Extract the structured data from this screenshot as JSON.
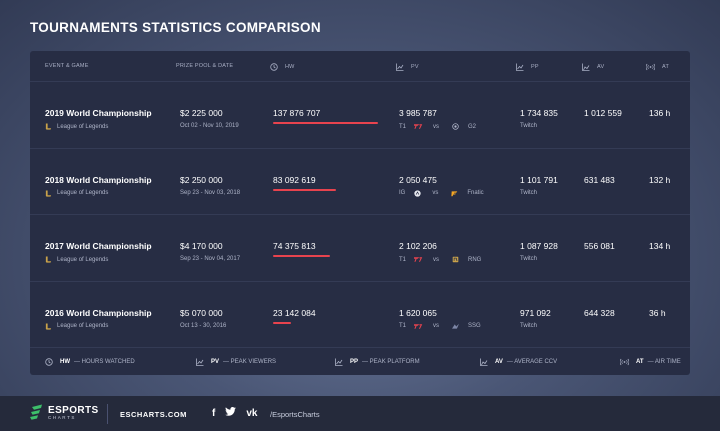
{
  "title": "TOURNAMENTS STATISTICS COMPARISON",
  "columns": {
    "event": "EVENT & GAME",
    "prize": "PRIZE POOL & DATE",
    "hw": "HW",
    "pv": "PV",
    "pp": "PP",
    "av": "AV",
    "at": "AT"
  },
  "rows": [
    {
      "name": "2019 World Championship",
      "game": "League of Legends",
      "prize": "$2 225 000",
      "dates": "Oct 02 - Nov 10, 2019",
      "hw": "137 876 707",
      "hw_fraction": 1.0,
      "pv": "3 985 787",
      "team1": "T1",
      "vs": "vs",
      "team2": "G2",
      "pp": "1 734 835",
      "platform": "Twitch",
      "av": "1 012 559",
      "at": "136 h"
    },
    {
      "name": "2018 World Championship",
      "game": "League of Legends",
      "prize": "$2 250 000",
      "dates": "Sep 23 - Nov 03, 2018",
      "hw": "83 092 619",
      "hw_fraction": 0.603,
      "pv": "2 050 475",
      "team1": "IG",
      "vs": "vs",
      "team2": "Fnatic",
      "pp": "1 101 791",
      "platform": "Twitch",
      "av": "631 483",
      "at": "132 h"
    },
    {
      "name": "2017 World Championship",
      "game": "League of Legends",
      "prize": "$4 170 000",
      "dates": "Sep 23 - Nov 04, 2017",
      "hw": "74 375 813",
      "hw_fraction": 0.539,
      "pv": "2 102 206",
      "team1": "T1",
      "vs": "vs",
      "team2": "RNG",
      "pp": "1 087 928",
      "platform": "Twitch",
      "av": "556 081",
      "at": "134 h"
    },
    {
      "name": "2016 World Championship",
      "game": "League of Legends",
      "prize": "$5 070 000",
      "dates": "Oct 13 - 30, 2016",
      "hw": "23 142 084",
      "hw_fraction": 0.168,
      "pv": "1 620 065",
      "team1": "T1",
      "vs": "vs",
      "team2": "SSG",
      "pp": "971 092",
      "platform": "Twitch",
      "av": "644 328",
      "at": "36 h"
    }
  ],
  "legend": {
    "hw_abbr": "HW",
    "hw_text": "— HOURS WATCHED",
    "pv_abbr": "PV",
    "pv_text": "— PEAK VIEWERS",
    "pp_abbr": "PP",
    "pp_text": "— PEAK PLATFORM",
    "av_abbr": "AV",
    "av_text": "— AVERAGE CCV",
    "at_abbr": "AT",
    "at_text": "— AIR TIME"
  },
  "footer": {
    "logo_word": "ESPORTS",
    "logo_sub": "CHARTS",
    "site": "ESCHARTS.COM",
    "facebook_glyph": "f",
    "vk_glyph": "vk",
    "handle": "/EsportsCharts"
  },
  "colors": {
    "accent": "#e8434e",
    "panel": "#272d44",
    "footer": "#252a3b",
    "logo_green": "#3dbf6a"
  }
}
